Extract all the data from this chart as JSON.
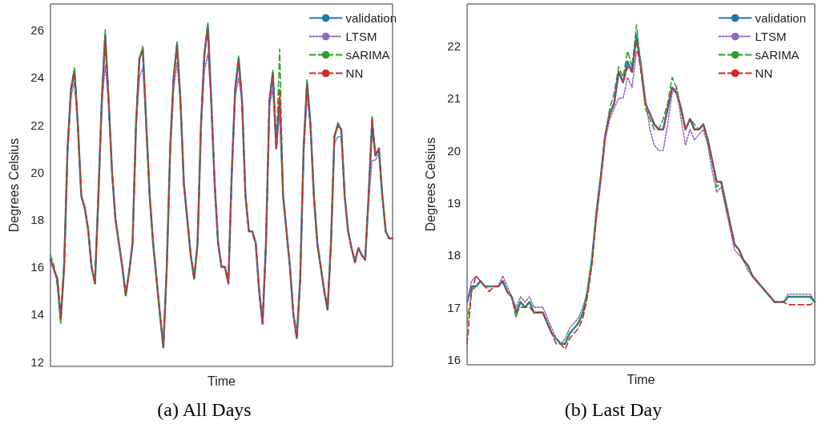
{
  "chart_data": [
    {
      "type": "line",
      "title": "(a) All Days",
      "xlabel": "Time",
      "ylabel": "Degrees Celsius",
      "ylim": [
        11.8,
        27.1
      ],
      "yticks": [
        12,
        14,
        16,
        18,
        20,
        22,
        24,
        26
      ],
      "grid": false,
      "legend": "top right",
      "tick_labels": "y",
      "categories": [
        null,
        null,
        null,
        null,
        null,
        null,
        null,
        null,
        null,
        null,
        null,
        null,
        null,
        null,
        null,
        null,
        null,
        null,
        null,
        null,
        null,
        null,
        null,
        null,
        null,
        null,
        null,
        null,
        null,
        null,
        null,
        null,
        null,
        null,
        null,
        null,
        null,
        null,
        null,
        null,
        null,
        null,
        null,
        null,
        null,
        null,
        null,
        null,
        null,
        null,
        null,
        null,
        null,
        null,
        null,
        null,
        null,
        null,
        null,
        null,
        null,
        null,
        null,
        null,
        null,
        null,
        null,
        null,
        null,
        null,
        null,
        null,
        null,
        null,
        null,
        null,
        null,
        null,
        null,
        null,
        null,
        null,
        null,
        null,
        null,
        null,
        null,
        null,
        null,
        null,
        null,
        null,
        null,
        null,
        null,
        null,
        null,
        null,
        null,
        null,
        null
      ],
      "series": [
        {
          "name": "validation",
          "color": "#1f77b4",
          "line_style": "solid",
          "values": [
            16.3,
            15.9,
            15.5,
            13.8,
            16.0,
            21.0,
            23.5,
            24.3,
            22.0,
            19.0,
            18.5,
            17.6,
            16.0,
            15.3,
            19.0,
            23.0,
            25.8,
            23.0,
            20.0,
            18.0,
            17.0,
            16.0,
            14.8,
            15.8,
            17.0,
            22.0,
            24.8,
            25.2,
            22.0,
            19.0,
            17.0,
            15.5,
            14.0,
            12.6,
            16.0,
            21.0,
            24.0,
            25.4,
            23.0,
            19.5,
            18.0,
            16.5,
            15.5,
            17.0,
            22.0,
            25.0,
            26.2,
            23.0,
            19.5,
            17.0,
            16.0,
            16.0,
            15.3,
            20.0,
            23.5,
            24.8,
            23.0,
            19.0,
            17.5,
            17.5,
            17.0,
            15.0,
            13.6,
            17.0,
            23.0,
            24.2,
            21.0,
            23.0,
            19.0,
            17.5,
            16.0,
            14.0,
            13.0,
            15.5,
            21.0,
            23.8,
            22.0,
            19.0,
            17.0,
            16.0,
            15.0,
            14.2,
            17.0,
            21.5,
            22.0,
            21.8,
            19.0,
            17.5,
            16.8,
            16.2,
            16.8,
            16.5,
            16.3,
            19.0,
            22.0,
            20.7,
            21.0,
            19.0,
            17.5,
            17.2,
            17.2
          ]
        },
        {
          "name": "LTSM",
          "color": "#9467bd",
          "line_style": "dotted",
          "values": [
            16.2,
            15.9,
            15.4,
            13.9,
            16.0,
            20.8,
            23.2,
            23.8,
            22.0,
            19.0,
            18.5,
            17.6,
            16.0,
            15.4,
            19.0,
            22.8,
            24.5,
            23.0,
            20.0,
            18.0,
            17.0,
            16.0,
            14.9,
            15.8,
            17.0,
            21.8,
            24.0,
            24.4,
            22.0,
            19.0,
            17.0,
            15.5,
            14.0,
            12.7,
            16.0,
            20.8,
            23.5,
            24.6,
            23.0,
            19.5,
            18.0,
            16.5,
            15.5,
            17.0,
            21.8,
            24.3,
            25.0,
            23.0,
            19.5,
            17.0,
            16.0,
            16.0,
            15.4,
            19.8,
            23.2,
            24.0,
            23.0,
            19.0,
            17.5,
            17.5,
            17.0,
            15.0,
            13.7,
            17.0,
            22.8,
            23.5,
            21.0,
            22.6,
            19.0,
            17.5,
            16.0,
            14.1,
            13.1,
            15.5,
            20.8,
            23.2,
            22.0,
            19.0,
            17.0,
            16.0,
            15.1,
            14.3,
            17.0,
            21.2,
            21.5,
            21.5,
            19.0,
            17.5,
            16.8,
            16.3,
            16.8,
            16.5,
            16.4,
            18.8,
            20.5,
            20.5,
            20.8,
            19.0,
            17.5,
            17.2,
            17.2
          ]
        },
        {
          "name": "sARIMA",
          "color": "#2ca02c",
          "line_style": "dashed",
          "values": [
            16.5,
            16.1,
            15.2,
            13.6,
            16.4,
            21.0,
            23.5,
            24.4,
            22.0,
            19.0,
            18.5,
            17.6,
            16.0,
            15.3,
            19.0,
            23.0,
            26.0,
            23.0,
            20.0,
            18.0,
            17.0,
            16.0,
            14.8,
            15.8,
            17.0,
            22.0,
            24.8,
            25.3,
            22.0,
            19.0,
            17.0,
            15.5,
            14.0,
            12.6,
            16.0,
            21.0,
            24.0,
            25.5,
            23.0,
            19.5,
            18.0,
            16.5,
            15.5,
            17.0,
            22.0,
            25.0,
            26.3,
            23.0,
            19.5,
            17.0,
            16.0,
            16.0,
            15.3,
            20.0,
            23.5,
            24.9,
            23.0,
            19.0,
            17.5,
            17.5,
            17.0,
            15.0,
            13.6,
            17.0,
            23.0,
            24.3,
            21.0,
            25.2,
            19.0,
            17.5,
            16.0,
            14.0,
            13.0,
            15.5,
            21.0,
            23.9,
            22.0,
            19.0,
            17.0,
            16.0,
            15.0,
            14.2,
            17.0,
            21.5,
            22.1,
            21.8,
            19.0,
            17.5,
            16.8,
            16.2,
            16.8,
            16.5,
            16.3,
            19.0,
            22.4,
            20.7,
            21.0,
            19.0,
            17.5,
            17.2,
            17.2
          ]
        },
        {
          "name": "NN",
          "color": "#d62728",
          "line_style": "dashed",
          "values": [
            16.3,
            15.9,
            15.5,
            13.8,
            16.0,
            21.0,
            23.5,
            24.2,
            22.0,
            19.0,
            18.5,
            17.6,
            16.0,
            15.3,
            19.0,
            23.0,
            25.7,
            23.0,
            20.0,
            18.0,
            17.0,
            16.0,
            14.8,
            15.8,
            17.0,
            22.0,
            24.8,
            25.1,
            22.0,
            19.0,
            17.0,
            15.5,
            14.0,
            12.6,
            16.0,
            21.0,
            24.0,
            25.3,
            23.0,
            19.5,
            18.0,
            16.5,
            15.5,
            17.0,
            22.0,
            25.0,
            26.0,
            23.0,
            19.5,
            17.0,
            16.0,
            16.0,
            15.3,
            20.0,
            23.5,
            24.7,
            23.0,
            19.0,
            17.5,
            17.5,
            17.0,
            15.0,
            13.6,
            17.0,
            23.0,
            24.1,
            21.0,
            23.5,
            19.0,
            17.5,
            16.0,
            14.0,
            13.0,
            15.5,
            21.0,
            23.7,
            22.0,
            19.0,
            17.0,
            16.0,
            15.0,
            14.2,
            17.0,
            21.5,
            22.0,
            21.8,
            19.0,
            17.5,
            16.8,
            16.2,
            16.8,
            16.5,
            16.3,
            19.0,
            22.3,
            20.7,
            21.0,
            19.0,
            17.5,
            17.2,
            17.2
          ]
        }
      ]
    },
    {
      "type": "line",
      "title": "(b) Last Day",
      "xlabel": "Time",
      "ylabel": "Degrees Celsius",
      "ylim": [
        15.9,
        22.8
      ],
      "yticks": [
        16,
        17,
        18,
        19,
        20,
        21,
        22
      ],
      "grid": false,
      "legend": "top right",
      "tick_labels": "y",
      "categories": [
        null,
        null,
        null,
        null,
        null,
        null,
        null,
        null,
        null,
        null,
        null,
        null,
        null,
        null,
        null,
        null,
        null,
        null,
        null,
        null,
        null,
        null,
        null,
        null,
        null,
        null,
        null,
        null,
        null,
        null,
        null,
        null,
        null,
        null,
        null,
        null,
        null,
        null,
        null,
        null,
        null,
        null,
        null,
        null,
        null,
        null,
        null,
        null,
        null,
        null,
        null,
        null,
        null,
        null,
        null,
        null,
        null,
        null,
        null,
        null,
        null,
        null,
        null,
        null,
        null,
        null,
        null,
        null,
        null,
        null,
        null,
        null,
        null,
        null,
        null,
        null,
        null,
        null,
        null
      ],
      "series": [
        {
          "name": "validation",
          "color": "#1f77b4",
          "line_style": "solid",
          "values": [
            17.1,
            17.4,
            17.4,
            17.5,
            17.4,
            17.4,
            17.4,
            17.4,
            17.5,
            17.3,
            17.2,
            16.9,
            17.1,
            17.0,
            17.1,
            16.9,
            16.9,
            16.9,
            16.7,
            16.5,
            16.4,
            16.3,
            16.3,
            16.5,
            16.6,
            16.7,
            16.9,
            17.3,
            17.9,
            18.8,
            19.5,
            20.3,
            20.7,
            20.9,
            21.5,
            21.3,
            21.7,
            21.5,
            22.2,
            21.6,
            20.9,
            20.7,
            20.5,
            20.4,
            20.4,
            20.8,
            21.2,
            21.1,
            20.8,
            20.4,
            20.6,
            20.4,
            20.4,
            20.5,
            20.2,
            19.8,
            19.4,
            19.4,
            19.0,
            18.6,
            18.2,
            18.1,
            17.9,
            17.8,
            17.6,
            17.5,
            17.4,
            17.3,
            17.2,
            17.1,
            17.1,
            17.1,
            17.2,
            17.2,
            17.2,
            17.2,
            17.2,
            17.2,
            17.1
          ]
        },
        {
          "name": "LTSM",
          "color": "#9467bd",
          "line_style": "dotted",
          "values": [
            17.1,
            17.5,
            17.6,
            17.5,
            17.4,
            17.4,
            17.4,
            17.4,
            17.6,
            17.4,
            17.2,
            17.0,
            17.2,
            17.1,
            17.2,
            17.0,
            17.0,
            17.0,
            16.8,
            16.6,
            16.4,
            16.3,
            16.4,
            16.6,
            16.7,
            16.8,
            17.0,
            17.3,
            17.9,
            18.7,
            19.4,
            20.2,
            20.6,
            20.8,
            21.0,
            21.0,
            21.4,
            21.2,
            21.9,
            21.7,
            21.0,
            20.4,
            20.1,
            20.0,
            20.0,
            20.5,
            21.1,
            21.2,
            20.6,
            20.1,
            20.4,
            20.2,
            20.3,
            20.4,
            20.1,
            19.6,
            19.2,
            19.3,
            18.9,
            18.5,
            18.1,
            18.0,
            17.9,
            17.7,
            17.6,
            17.5,
            17.4,
            17.3,
            17.2,
            17.1,
            17.1,
            17.1,
            17.25,
            17.25,
            17.25,
            17.25,
            17.25,
            17.25,
            17.1
          ]
        },
        {
          "name": "sARIMA",
          "color": "#2ca02c",
          "line_style": "dashed",
          "values": [
            16.7,
            17.3,
            17.4,
            17.5,
            17.4,
            17.4,
            17.4,
            17.4,
            17.5,
            17.3,
            17.2,
            16.8,
            17.1,
            17.0,
            17.1,
            16.9,
            16.9,
            16.9,
            16.7,
            16.5,
            16.4,
            16.3,
            16.3,
            16.5,
            16.6,
            16.7,
            16.9,
            17.3,
            17.9,
            18.8,
            19.5,
            20.3,
            20.8,
            21.1,
            21.6,
            21.4,
            21.9,
            21.6,
            22.4,
            21.6,
            20.8,
            20.6,
            20.4,
            20.4,
            20.6,
            20.9,
            21.4,
            21.2,
            20.8,
            20.4,
            20.6,
            20.5,
            20.4,
            20.5,
            20.2,
            19.8,
            19.3,
            19.4,
            19.0,
            18.6,
            18.2,
            18.1,
            17.9,
            17.8,
            17.6,
            17.5,
            17.4,
            17.3,
            17.2,
            17.1,
            17.1,
            17.1,
            17.2,
            17.2,
            17.2,
            17.2,
            17.2,
            17.2,
            17.1
          ]
        },
        {
          "name": "NN",
          "color": "#d62728",
          "line_style": "dashed",
          "values": [
            16.3,
            17.3,
            17.6,
            17.5,
            17.4,
            17.3,
            17.4,
            17.4,
            17.5,
            17.3,
            17.2,
            16.9,
            17.0,
            17.0,
            17.0,
            16.9,
            16.9,
            16.9,
            16.7,
            16.5,
            16.3,
            16.3,
            16.2,
            16.4,
            16.5,
            16.6,
            16.8,
            17.2,
            17.8,
            18.7,
            19.5,
            20.3,
            20.7,
            20.9,
            21.5,
            21.3,
            21.6,
            21.5,
            22.1,
            21.5,
            20.9,
            20.7,
            20.5,
            20.4,
            20.4,
            20.8,
            21.2,
            21.1,
            20.8,
            20.4,
            20.6,
            20.4,
            20.4,
            20.5,
            20.2,
            19.8,
            19.4,
            19.4,
            19.0,
            18.6,
            18.2,
            18.1,
            17.9,
            17.8,
            17.6,
            17.5,
            17.4,
            17.3,
            17.2,
            17.1,
            17.1,
            17.1,
            17.05,
            17.05,
            17.05,
            17.05,
            17.05,
            17.05,
            17.1
          ]
        }
      ]
    }
  ]
}
